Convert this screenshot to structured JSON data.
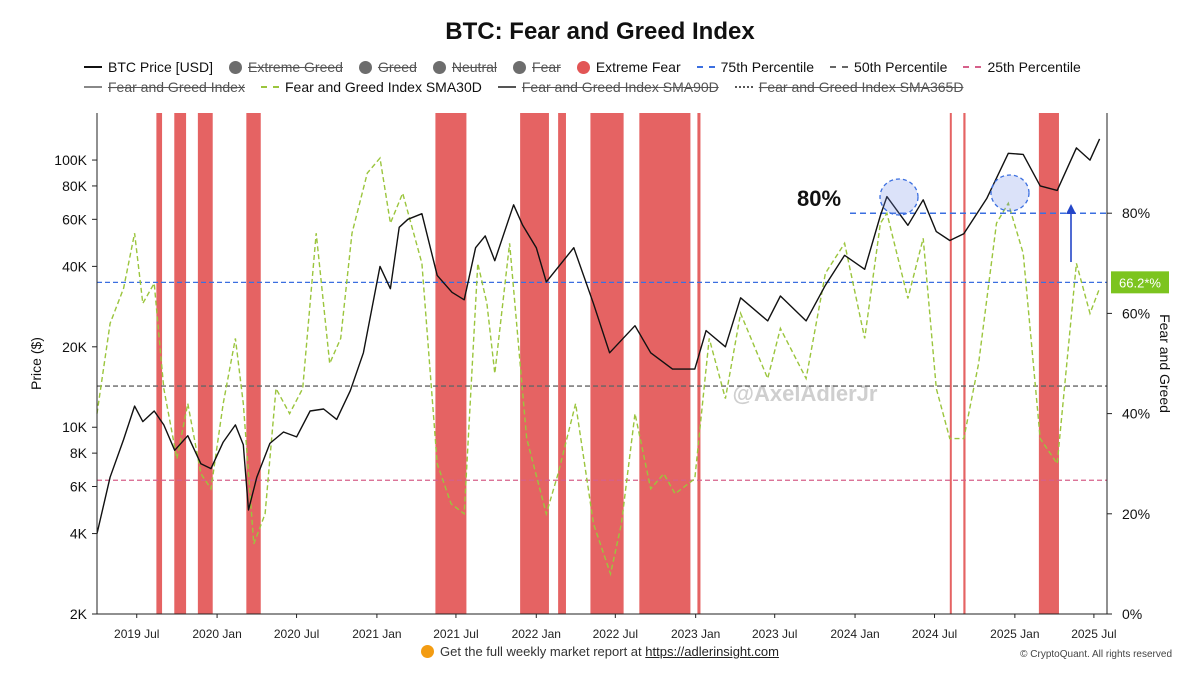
{
  "title": "BTC: Fear and Greed Index",
  "legend_row1": [
    {
      "label": "BTC Price [USD]",
      "kind": "line",
      "color": "#111111",
      "struck": false
    },
    {
      "label": "Extreme Greed",
      "kind": "dot",
      "color": "#6d6d6d",
      "struck": true
    },
    {
      "label": "Greed",
      "kind": "dot",
      "color": "#6d6d6d",
      "struck": true
    },
    {
      "label": "Neutral",
      "kind": "dot",
      "color": "#6d6d6d",
      "struck": true
    },
    {
      "label": "Fear",
      "kind": "dot",
      "color": "#6d6d6d",
      "struck": true
    },
    {
      "label": "Extreme Fear",
      "kind": "dot",
      "color": "#e25555",
      "struck": false
    },
    {
      "label": "75th Percentile",
      "kind": "dash",
      "color": "#3b6fe0",
      "struck": false
    },
    {
      "label": "50th Percentile",
      "kind": "dash",
      "color": "#666666",
      "struck": false
    },
    {
      "label": "25th Percentile",
      "kind": "dash",
      "color": "#d6608a",
      "struck": false
    }
  ],
  "legend_row2": [
    {
      "label": "Fear and Greed Index",
      "kind": "line",
      "color": "#888888",
      "struck": true
    },
    {
      "label": "Fear and Greed Index SMA30D",
      "kind": "dash",
      "color": "#9bc53d",
      "struck": false
    },
    {
      "label": "Fear and Greed Index SMA90D",
      "kind": "line",
      "color": "#555555",
      "struck": true
    },
    {
      "label": "Fear and Greed Index SMA365D",
      "kind": "dashdot",
      "color": "#555555",
      "struck": true
    }
  ],
  "footer": {
    "text": "Get the full weekly market report at",
    "link": "https://adlerinsight.com"
  },
  "copyright": "© CryptoQuant. All rights reserved",
  "watermark": "@AxelAdlerJr",
  "annotation_80": "80%",
  "callout_value": "66.2*%",
  "colors": {
    "price": "#111111",
    "sma30": "#9bc53d",
    "extreme_fear": "#e04848",
    "p75": "#3b6fe0",
    "p50": "#666666",
    "p25": "#d6608a",
    "callout": "#7cc41f"
  },
  "chart_data": {
    "type": "line",
    "x_range": [
      "2019-04-01",
      "2025-07-31"
    ],
    "x_ticks": [
      "2019 Jul",
      "2020 Jan",
      "2020 Jul",
      "2021 Jan",
      "2021 Jul",
      "2022 Jan",
      "2022 Jul",
      "2023 Jan",
      "2023 Jul",
      "2024 Jan",
      "2024 Jul",
      "2025 Jan",
      "2025 Jul"
    ],
    "left_axis": {
      "label": "Price ($)",
      "scale": "log",
      "ylim": [
        2000,
        150000
      ],
      "ticks": [
        2000,
        4000,
        6000,
        8000,
        10000,
        20000,
        40000,
        60000,
        80000,
        100000
      ],
      "tick_labels": [
        "2K",
        "4K",
        "6K",
        "8K",
        "10K",
        "20K",
        "40K",
        "60K",
        "80K",
        "100K"
      ]
    },
    "right_axis": {
      "label": "Fear and Greed",
      "ylim": [
        0,
        100
      ],
      "ticks": [
        0,
        20,
        40,
        60,
        80
      ],
      "tick_labels": [
        "0%",
        "20%",
        "40%",
        "60%",
        "80%"
      ]
    },
    "percentiles": {
      "p75": 66.2,
      "p50": 45.5,
      "p25": 26.7,
      "target": 80
    },
    "series": [
      {
        "name": "BTC Price [USD]",
        "axis": "left",
        "points": [
          [
            "2019-04-01",
            4000
          ],
          [
            "2019-05-01",
            6500
          ],
          [
            "2019-06-01",
            9000
          ],
          [
            "2019-06-26",
            12000
          ],
          [
            "2019-07-15",
            10500
          ],
          [
            "2019-08-10",
            11500
          ],
          [
            "2019-09-01",
            10200
          ],
          [
            "2019-09-26",
            8200
          ],
          [
            "2019-10-26",
            9300
          ],
          [
            "2019-11-25",
            7300
          ],
          [
            "2019-12-18",
            7000
          ],
          [
            "2020-01-15",
            8800
          ],
          [
            "2020-02-12",
            10200
          ],
          [
            "2020-03-01",
            8600
          ],
          [
            "2020-03-13",
            4900
          ],
          [
            "2020-04-01",
            6500
          ],
          [
            "2020-05-01",
            8700
          ],
          [
            "2020-06-01",
            9600
          ],
          [
            "2020-07-01",
            9200
          ],
          [
            "2020-08-01",
            11500
          ],
          [
            "2020-09-01",
            11700
          ],
          [
            "2020-10-01",
            10700
          ],
          [
            "2020-11-01",
            13700
          ],
          [
            "2020-12-01",
            19000
          ],
          [
            "2021-01-08",
            40000
          ],
          [
            "2021-02-01",
            33000
          ],
          [
            "2021-02-21",
            56000
          ],
          [
            "2021-03-13",
            60000
          ],
          [
            "2021-04-14",
            63000
          ],
          [
            "2021-05-19",
            37000
          ],
          [
            "2021-06-22",
            32000
          ],
          [
            "2021-07-20",
            30000
          ],
          [
            "2021-08-15",
            47000
          ],
          [
            "2021-09-06",
            52000
          ],
          [
            "2021-09-28",
            42000
          ],
          [
            "2021-11-10",
            68000
          ],
          [
            "2021-12-01",
            57000
          ],
          [
            "2022-01-01",
            47000
          ],
          [
            "2022-01-24",
            35000
          ],
          [
            "2022-03-28",
            47000
          ],
          [
            "2022-05-12",
            29000
          ],
          [
            "2022-06-18",
            19000
          ],
          [
            "2022-08-15",
            24000
          ],
          [
            "2022-09-20",
            19000
          ],
          [
            "2022-11-09",
            16500
          ],
          [
            "2022-12-30",
            16500
          ],
          [
            "2023-01-25",
            23000
          ],
          [
            "2023-03-10",
            20000
          ],
          [
            "2023-04-14",
            30500
          ],
          [
            "2023-06-15",
            25000
          ],
          [
            "2023-07-14",
            31000
          ],
          [
            "2023-09-11",
            25000
          ],
          [
            "2023-10-25",
            34000
          ],
          [
            "2023-12-08",
            44000
          ],
          [
            "2024-01-23",
            39000
          ],
          [
            "2024-02-28",
            62000
          ],
          [
            "2024-03-14",
            73000
          ],
          [
            "2024-05-01",
            57000
          ],
          [
            "2024-06-05",
            71000
          ],
          [
            "2024-07-05",
            54000
          ],
          [
            "2024-08-05",
            50000
          ],
          [
            "2024-09-06",
            53000
          ],
          [
            "2024-10-29",
            72000
          ],
          [
            "2024-12-17",
            106000
          ],
          [
            "2025-01-20",
            105000
          ],
          [
            "2025-02-28",
            80000
          ],
          [
            "2025-04-08",
            77000
          ],
          [
            "2025-05-22",
            111000
          ],
          [
            "2025-06-22",
            100000
          ],
          [
            "2025-07-14",
            120000
          ]
        ]
      },
      {
        "name": "Fear and Greed Index SMA30D",
        "axis": "right",
        "points": [
          [
            "2019-04-01",
            40
          ],
          [
            "2019-05-01",
            58
          ],
          [
            "2019-06-01",
            65
          ],
          [
            "2019-06-26",
            76
          ],
          [
            "2019-07-15",
            62
          ],
          [
            "2019-08-10",
            66
          ],
          [
            "2019-09-01",
            45
          ],
          [
            "2019-10-01",
            31
          ],
          [
            "2019-10-26",
            42
          ],
          [
            "2019-11-25",
            28
          ],
          [
            "2019-12-18",
            25
          ],
          [
            "2020-01-15",
            42
          ],
          [
            "2020-02-12",
            55
          ],
          [
            "2020-03-01",
            42
          ],
          [
            "2020-03-25",
            14
          ],
          [
            "2020-04-20",
            20
          ],
          [
            "2020-05-15",
            45
          ],
          [
            "2020-06-15",
            40
          ],
          [
            "2020-07-15",
            45
          ],
          [
            "2020-08-15",
            76
          ],
          [
            "2020-09-15",
            50
          ],
          [
            "2020-10-10",
            55
          ],
          [
            "2020-11-05",
            76
          ],
          [
            "2020-12-10",
            88
          ],
          [
            "2021-01-08",
            91
          ],
          [
            "2021-02-01",
            78
          ],
          [
            "2021-03-01",
            84
          ],
          [
            "2021-04-14",
            70
          ],
          [
            "2021-05-19",
            30
          ],
          [
            "2021-06-20",
            22
          ],
          [
            "2021-07-20",
            20
          ],
          [
            "2021-08-20",
            70
          ],
          [
            "2021-09-10",
            62
          ],
          [
            "2021-09-28",
            48
          ],
          [
            "2021-11-01",
            74
          ],
          [
            "2021-12-10",
            35
          ],
          [
            "2022-01-24",
            20
          ],
          [
            "2022-02-20",
            28
          ],
          [
            "2022-04-01",
            42
          ],
          [
            "2022-05-12",
            18
          ],
          [
            "2022-06-20",
            8
          ],
          [
            "2022-07-15",
            18
          ],
          [
            "2022-08-15",
            40
          ],
          [
            "2022-09-20",
            25
          ],
          [
            "2022-10-20",
            28
          ],
          [
            "2022-11-15",
            24
          ],
          [
            "2022-12-30",
            27
          ],
          [
            "2023-02-01",
            55
          ],
          [
            "2023-03-10",
            43
          ],
          [
            "2023-04-14",
            60
          ],
          [
            "2023-06-15",
            47
          ],
          [
            "2023-07-14",
            57
          ],
          [
            "2023-09-11",
            47
          ],
          [
            "2023-10-25",
            68
          ],
          [
            "2023-12-08",
            74
          ],
          [
            "2024-01-23",
            55
          ],
          [
            "2024-02-28",
            78
          ],
          [
            "2024-03-14",
            80
          ],
          [
            "2024-05-01",
            63
          ],
          [
            "2024-06-05",
            75
          ],
          [
            "2024-07-05",
            45
          ],
          [
            "2024-08-05",
            35
          ],
          [
            "2024-09-06",
            35
          ],
          [
            "2024-10-10",
            50
          ],
          [
            "2024-11-20",
            78
          ],
          [
            "2024-12-17",
            82
          ],
          [
            "2025-01-20",
            72
          ],
          [
            "2025-02-28",
            35
          ],
          [
            "2025-04-08",
            30
          ],
          [
            "2025-05-22",
            70
          ],
          [
            "2025-06-22",
            60
          ],
          [
            "2025-07-14",
            65
          ]
        ]
      }
    ],
    "extreme_fear_periods": [
      [
        "2019-08-15",
        "2019-08-28"
      ],
      [
        "2019-09-25",
        "2019-10-22"
      ],
      [
        "2019-11-18",
        "2019-12-22"
      ],
      [
        "2020-03-08",
        "2020-04-10"
      ],
      [
        "2021-05-15",
        "2021-07-25"
      ],
      [
        "2021-11-25",
        "2022-01-30"
      ],
      [
        "2022-02-20",
        "2022-03-10"
      ],
      [
        "2022-05-05",
        "2022-07-20"
      ],
      [
        "2022-08-25",
        "2022-12-20"
      ],
      [
        "2023-01-05",
        "2023-01-12"
      ],
      [
        "2024-08-05",
        "2024-08-08"
      ],
      [
        "2024-09-05",
        "2024-09-10"
      ],
      [
        "2025-02-25",
        "2025-04-12"
      ]
    ]
  }
}
